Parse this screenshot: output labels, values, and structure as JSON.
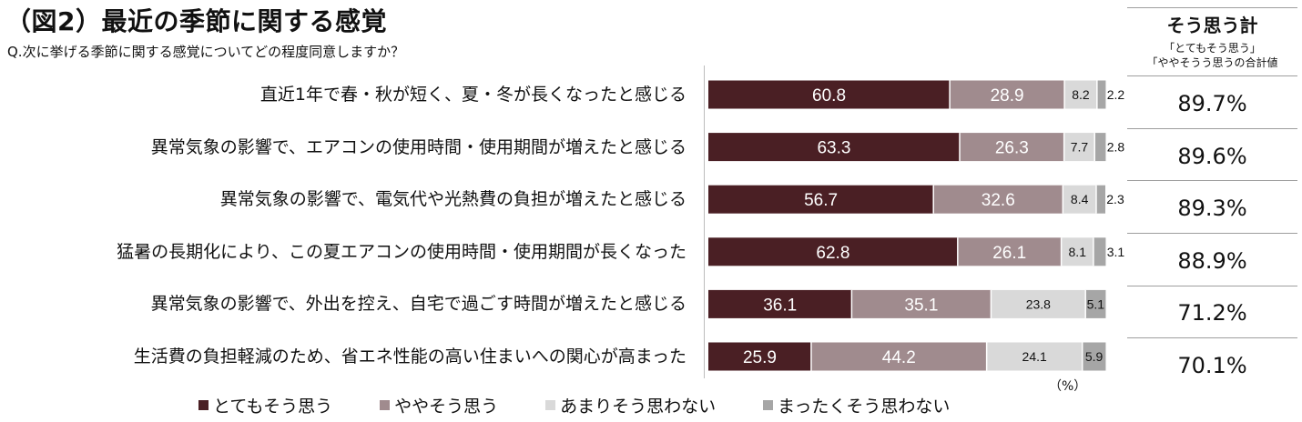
{
  "title": "（図2）最近の季節に関する感覚",
  "subtitle": "Q.次に挙げる季節に関する感覚についてどの程度同意しますか？",
  "unit_label": "（%）",
  "right_panel": {
    "heading": "そう思う計",
    "note_line1": "「とてもそう思う」",
    "note_line2": "「ややそうう思うの合計値",
    "totals": [
      "89.7%",
      "89.6%",
      "89.3%",
      "88.9%",
      "71.2%",
      "70.1%"
    ]
  },
  "legend": [
    "■とてもそう思う",
    "■ややそう思う",
    "■あまりそう思わない",
    "■まったくそう思わない"
  ],
  "colors": {
    "strongly_agree": "#4a1f24",
    "somewhat_agree": "#a08b8e",
    "not_really": "#d9d9d9",
    "not_at_all": "#a6a6a6",
    "text_dark": "#111111",
    "text_light": "#ffffff"
  },
  "chart_data": {
    "type": "bar",
    "orientation": "horizontal",
    "stacked": true,
    "categories": [
      "直近1年で春・秋が短く、夏・冬が長くなったと感じる",
      "異常気象の影響で、エアコンの使用時間・使用期間が増えたと感じる",
      "異常気象の影響で、電気代や光熱費の負担が増えたと感じる",
      "猛暑の長期化により、この夏エアコンの使用時間・使用期間が長くなった",
      "異常気象の影響で、外出を控え、自宅で過ごす時間が増えたと感じる",
      "生活費の負担軽減のため、省エネ性能の高い住まいへの関心が高まった"
    ],
    "series": [
      {
        "name": "とてもそう思う",
        "values": [
          60.8,
          63.3,
          56.7,
          62.8,
          36.1,
          25.9
        ],
        "labels": [
          "60.8",
          "63.3",
          "56.7",
          "62.8",
          "36.1",
          "25.9"
        ]
      },
      {
        "name": "ややそう思う",
        "values": [
          28.9,
          26.3,
          32.6,
          26.1,
          35.1,
          44.2
        ],
        "labels": [
          "28.9",
          "26.3",
          "32.6",
          "26.1",
          "35.1",
          "44.2"
        ]
      },
      {
        "name": "あまりそう思わない",
        "values": [
          8.2,
          7.7,
          8.4,
          8.1,
          23.8,
          24.1
        ],
        "labels": [
          "8.2",
          "7.7",
          "8.4",
          "8.1",
          "23.8",
          "24.1"
        ]
      },
      {
        "name": "まったくそう思わない",
        "values": [
          2.2,
          2.8,
          2.3,
          3.1,
          5.1,
          5.9
        ],
        "labels": [
          "2.2",
          "2.8",
          "2.3",
          "3.1",
          "5.1",
          "5.9"
        ]
      }
    ],
    "xlim": [
      0,
      100
    ],
    "grid": false,
    "legend_position": "bottom"
  }
}
